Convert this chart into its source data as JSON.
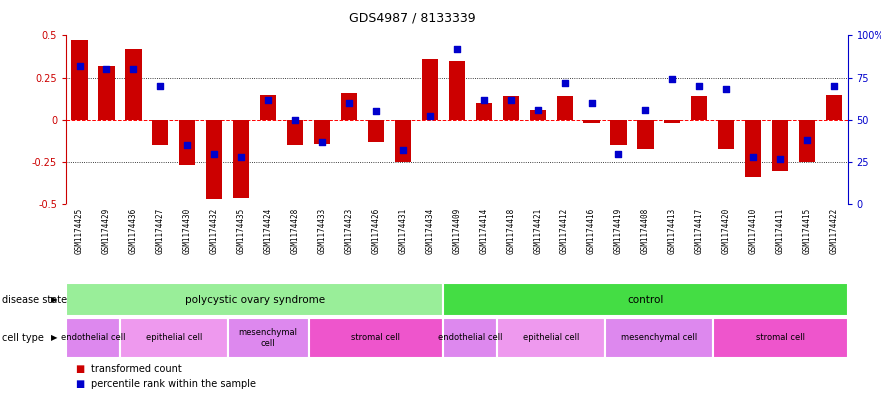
{
  "title": "GDS4987 / 8133339",
  "samples": [
    "GSM1174425",
    "GSM1174429",
    "GSM1174436",
    "GSM1174427",
    "GSM1174430",
    "GSM1174432",
    "GSM1174435",
    "GSM1174424",
    "GSM1174428",
    "GSM1174433",
    "GSM1174423",
    "GSM1174426",
    "GSM1174431",
    "GSM1174434",
    "GSM1174409",
    "GSM1174414",
    "GSM1174418",
    "GSM1174421",
    "GSM1174412",
    "GSM1174416",
    "GSM1174419",
    "GSM1174408",
    "GSM1174413",
    "GSM1174417",
    "GSM1174420",
    "GSM1174410",
    "GSM1174411",
    "GSM1174415",
    "GSM1174422"
  ],
  "transformed_count": [
    0.47,
    0.32,
    0.42,
    -0.15,
    -0.27,
    -0.47,
    -0.46,
    0.15,
    -0.15,
    -0.14,
    0.16,
    -0.13,
    -0.25,
    0.36,
    0.35,
    0.1,
    0.14,
    0.06,
    0.14,
    -0.02,
    -0.15,
    -0.17,
    -0.02,
    0.14,
    -0.17,
    -0.34,
    -0.3,
    -0.25,
    0.15
  ],
  "percentile_rank": [
    82,
    80,
    80,
    70,
    35,
    30,
    28,
    62,
    50,
    37,
    60,
    55,
    32,
    52,
    92,
    62,
    62,
    56,
    72,
    60,
    30,
    56,
    74,
    70,
    68,
    28,
    27,
    38,
    70
  ],
  "bar_color": "#cc0000",
  "dot_color": "#0000cc",
  "ylim_left": [
    -0.5,
    0.5
  ],
  "ylim_right": [
    0,
    100
  ],
  "yticks_left": [
    -0.5,
    -0.25,
    0.0,
    0.25,
    0.5
  ],
  "yticks_right": [
    0,
    25,
    50,
    75,
    100
  ],
  "ytick_labels_left": [
    "-0.5",
    "-0.25",
    "0",
    "0.25",
    "0.5"
  ],
  "ytick_labels_right": [
    "0",
    "25",
    "50",
    "75",
    "100%"
  ],
  "hlines_dotted": [
    0.25,
    -0.25
  ],
  "disease_state_groups": [
    {
      "label": "polycystic ovary syndrome",
      "start": 0,
      "end": 14,
      "color": "#99ee99"
    },
    {
      "label": "control",
      "start": 14,
      "end": 29,
      "color": "#44dd44"
    }
  ],
  "cell_type_groups": [
    {
      "label": "endothelial cell",
      "start": 0,
      "end": 2,
      "color": "#dd88ee"
    },
    {
      "label": "epithelial cell",
      "start": 2,
      "end": 6,
      "color": "#ee99ee"
    },
    {
      "label": "mesenchymal\ncell",
      "start": 6,
      "end": 9,
      "color": "#dd88ee"
    },
    {
      "label": "stromal cell",
      "start": 9,
      "end": 14,
      "color": "#ee55cc"
    },
    {
      "label": "endothelial cell",
      "start": 14,
      "end": 16,
      "color": "#dd88ee"
    },
    {
      "label": "epithelial cell",
      "start": 16,
      "end": 20,
      "color": "#ee99ee"
    },
    {
      "label": "mesenchymal cell",
      "start": 20,
      "end": 24,
      "color": "#dd88ee"
    },
    {
      "label": "stromal cell",
      "start": 24,
      "end": 29,
      "color": "#ee55cc"
    }
  ],
  "disease_state_label": "disease state",
  "cell_type_label": "cell type",
  "xtick_bg_color": "#dddddd",
  "legend_items": [
    {
      "label": "transformed count",
      "color": "#cc0000"
    },
    {
      "label": "percentile rank within the sample",
      "color": "#0000cc"
    }
  ]
}
